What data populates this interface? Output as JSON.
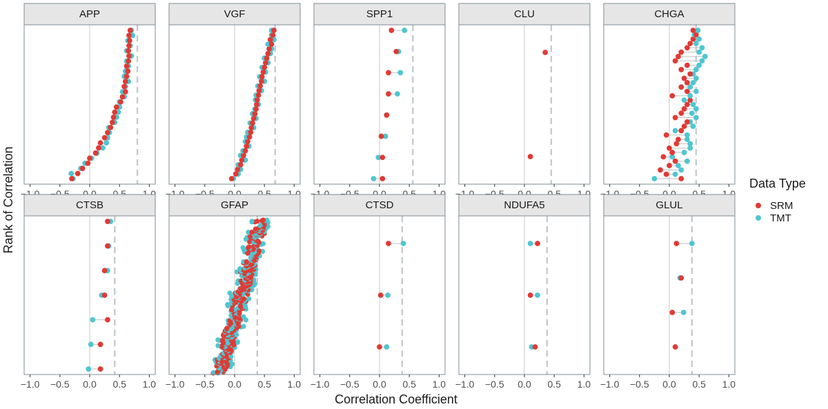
{
  "chart_data": {
    "type": "scatter",
    "subtype": "faceted dumbbell plot (paired points per rank)",
    "facet_layout": "2 rows x 5 columns",
    "xlabel": "Correlation Coefficient",
    "ylabel": "Rank of Correlation",
    "xlim": [
      -1.1,
      1.1
    ],
    "x_ticks": [
      -1.0,
      -0.5,
      0.0,
      0.5,
      1.0
    ],
    "x_tick_labels": [
      "−1.0",
      "−0.5",
      "0.0",
      "0.5",
      "1.0"
    ],
    "reference_lines": [
      {
        "x": 0,
        "style": "solid",
        "color": "#d9d9d9"
      },
      {
        "x": "per-panel threshold",
        "style": "dashed",
        "color": "#c8cfd4"
      }
    ],
    "legend": {
      "title": "Data Type",
      "placement": "right",
      "entries": [
        {
          "label": "SRM",
          "color": "#e03a35"
        },
        {
          "label": "TMT",
          "color": "#4fc6d0"
        }
      ]
    },
    "colors": {
      "SRM": "#e03a35",
      "TMT": "#4fc6d0",
      "segment": "#bfbfbf",
      "strip_bg": "#e6e6e6",
      "panel_border": "#7f8c94"
    },
    "panels": [
      {
        "name": "APP",
        "threshold": 0.8,
        "pairs": [
          [
            -0.3,
            -0.28
          ],
          [
            -0.2,
            -0.31
          ],
          [
            -0.12,
            -0.15
          ],
          [
            -0.03,
            -0.08
          ],
          [
            0.0,
            0.03
          ],
          [
            0.1,
            0.12
          ],
          [
            0.15,
            0.22
          ],
          [
            0.18,
            0.28
          ],
          [
            0.25,
            0.3
          ],
          [
            0.3,
            0.33
          ],
          [
            0.35,
            0.32
          ],
          [
            0.38,
            0.42
          ],
          [
            0.4,
            0.45
          ],
          [
            0.42,
            0.48
          ],
          [
            0.45,
            0.5
          ],
          [
            0.52,
            0.5
          ],
          [
            0.55,
            0.58
          ],
          [
            0.6,
            0.55
          ],
          [
            0.58,
            0.6
          ],
          [
            0.6,
            0.65
          ],
          [
            0.62,
            0.58
          ],
          [
            0.64,
            0.6
          ],
          [
            0.62,
            0.65
          ],
          [
            0.65,
            0.62
          ],
          [
            0.66,
            0.7
          ],
          [
            0.65,
            0.62
          ],
          [
            0.66,
            0.68
          ],
          [
            0.67,
            0.64
          ],
          [
            0.66,
            0.72
          ],
          [
            0.68,
            0.7
          ]
        ]
      },
      {
        "name": "VGF",
        "threshold": 0.68,
        "pairs": [
          [
            -0.05,
            -0.02
          ],
          [
            0.02,
            0.06
          ],
          [
            0.05,
            0.1
          ],
          [
            0.1,
            0.06
          ],
          [
            0.12,
            0.18
          ],
          [
            0.15,
            0.1
          ],
          [
            0.18,
            0.14
          ],
          [
            0.2,
            0.24
          ],
          [
            0.22,
            0.18
          ],
          [
            0.25,
            0.2
          ],
          [
            0.27,
            0.22
          ],
          [
            0.28,
            0.32
          ],
          [
            0.3,
            0.26
          ],
          [
            0.32,
            0.36
          ],
          [
            0.34,
            0.3
          ],
          [
            0.36,
            0.34
          ],
          [
            0.37,
            0.4
          ],
          [
            0.38,
            0.35
          ],
          [
            0.4,
            0.36
          ],
          [
            0.41,
            0.45
          ],
          [
            0.43,
            0.39
          ],
          [
            0.45,
            0.5
          ],
          [
            0.46,
            0.42
          ],
          [
            0.48,
            0.52
          ],
          [
            0.5,
            0.46
          ],
          [
            0.52,
            0.56
          ],
          [
            0.54,
            0.5
          ],
          [
            0.56,
            0.6
          ],
          [
            0.58,
            0.62
          ],
          [
            0.62,
            0.56
          ],
          [
            0.6,
            0.66
          ],
          [
            0.64,
            0.62
          ],
          [
            0.66,
            0.62
          ]
        ]
      },
      {
        "name": "SPP1",
        "threshold": 0.56,
        "pairs": [
          [
            0.05,
            -0.1
          ],
          [
            0.05,
            -0.02
          ],
          [
            0.03,
            0.1
          ],
          [
            0.12,
            0.12
          ],
          [
            0.15,
            0.3
          ],
          [
            0.15,
            0.35
          ],
          [
            0.28,
            0.32
          ],
          [
            0.2,
            0.42
          ]
        ]
      },
      {
        "name": "CLU",
        "threshold": 0.45,
        "pairs": [
          [
            0.1,
            null
          ],
          [
            0.35,
            null
          ]
        ]
      },
      {
        "name": "CHGA",
        "threshold": 0.45,
        "pairs": [
          [
            0.2,
            -0.25
          ],
          [
            -0.05,
            0.1
          ],
          [
            -0.15,
            0.2
          ],
          [
            0.0,
            0.15
          ],
          [
            0.1,
            0.3
          ],
          [
            -0.1,
            0.05
          ],
          [
            0.05,
            0.25
          ],
          [
            0.0,
            0.35
          ],
          [
            0.12,
            0.35
          ],
          [
            0.15,
            0.3
          ],
          [
            -0.05,
            0.3
          ],
          [
            0.2,
            0.1
          ],
          [
            0.25,
            0.4
          ],
          [
            0.3,
            0.35
          ],
          [
            0.1,
            0.45
          ],
          [
            0.2,
            0.38
          ],
          [
            0.25,
            0.45
          ],
          [
            0.3,
            0.4
          ],
          [
            0.35,
            0.25
          ],
          [
            0.05,
            0.35
          ],
          [
            0.3,
            0.45
          ],
          [
            0.2,
            0.35
          ],
          [
            0.3,
            0.4
          ],
          [
            0.25,
            0.45
          ],
          [
            0.35,
            0.4
          ],
          [
            0.2,
            0.45
          ],
          [
            0.3,
            0.5
          ],
          [
            0.1,
            0.55
          ],
          [
            0.15,
            0.6
          ],
          [
            0.2,
            0.5
          ],
          [
            0.3,
            0.55
          ],
          [
            0.35,
            0.45
          ],
          [
            0.4,
            0.5
          ],
          [
            0.45,
            0.42
          ],
          [
            0.4,
            0.48
          ]
        ]
      },
      {
        "name": "CTSB",
        "threshold": 0.42,
        "pairs": [
          [
            0.18,
            -0.02
          ],
          [
            0.18,
            0.02
          ],
          [
            0.3,
            0.05
          ],
          [
            0.25,
            0.2
          ],
          [
            0.25,
            0.3
          ],
          [
            0.3,
            0.32
          ],
          [
            0.3,
            0.35
          ]
        ]
      },
      {
        "name": "GFAP",
        "threshold": 0.38,
        "generated": true,
        "count": 240,
        "x_range_srm": [
          -0.3,
          0.5
        ],
        "x_range_tmt": [
          -0.3,
          0.55
        ]
      },
      {
        "name": "CTSD",
        "threshold": 0.38,
        "pairs": [
          [
            0.0,
            0.12
          ],
          [
            0.02,
            0.14
          ],
          [
            0.15,
            0.4
          ]
        ]
      },
      {
        "name": "NDUFA5",
        "threshold": 0.38,
        "pairs": [
          [
            0.18,
            0.12
          ],
          [
            0.1,
            0.22
          ],
          [
            0.22,
            0.1
          ]
        ]
      },
      {
        "name": "GLUL",
        "threshold": 0.38,
        "pairs": [
          [
            0.1,
            null
          ],
          [
            0.05,
            0.24
          ],
          [
            0.2,
            0.18
          ],
          [
            0.12,
            0.38
          ]
        ]
      }
    ]
  }
}
